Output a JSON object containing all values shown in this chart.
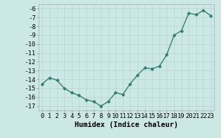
{
  "x": [
    0,
    1,
    2,
    3,
    4,
    5,
    6,
    7,
    8,
    9,
    10,
    11,
    12,
    13,
    14,
    15,
    16,
    17,
    18,
    19,
    20,
    21,
    22,
    23
  ],
  "y": [
    -14.5,
    -13.8,
    -14.1,
    -15.0,
    -15.5,
    -15.8,
    -16.3,
    -16.5,
    -17.0,
    -16.5,
    -15.5,
    -15.7,
    -14.5,
    -13.5,
    -12.7,
    -12.8,
    -12.5,
    -11.2,
    -9.0,
    -8.5,
    -6.5,
    -6.7,
    -6.2,
    -6.8
  ],
  "title": "",
  "xlabel": "Humidex (Indice chaleur)",
  "ylabel": "",
  "xlim": [
    -0.5,
    23.5
  ],
  "ylim": [
    -17.5,
    -5.5
  ],
  "yticks": [
    -6,
    -7,
    -8,
    -9,
    -10,
    -11,
    -12,
    -13,
    -14,
    -15,
    -16,
    -17
  ],
  "xticks": [
    0,
    1,
    2,
    3,
    4,
    5,
    6,
    7,
    8,
    9,
    10,
    11,
    12,
    13,
    14,
    15,
    16,
    17,
    18,
    19,
    20,
    21,
    22,
    23
  ],
  "line_color": "#2e7d6e",
  "marker_color": "#2e7d6e",
  "bg_color": "#cce8e5",
  "grid_color": "#b8d8d5",
  "axis_label_fontsize": 7.5,
  "tick_fontsize": 6.5,
  "line_width": 1.0,
  "marker_size": 2.5
}
